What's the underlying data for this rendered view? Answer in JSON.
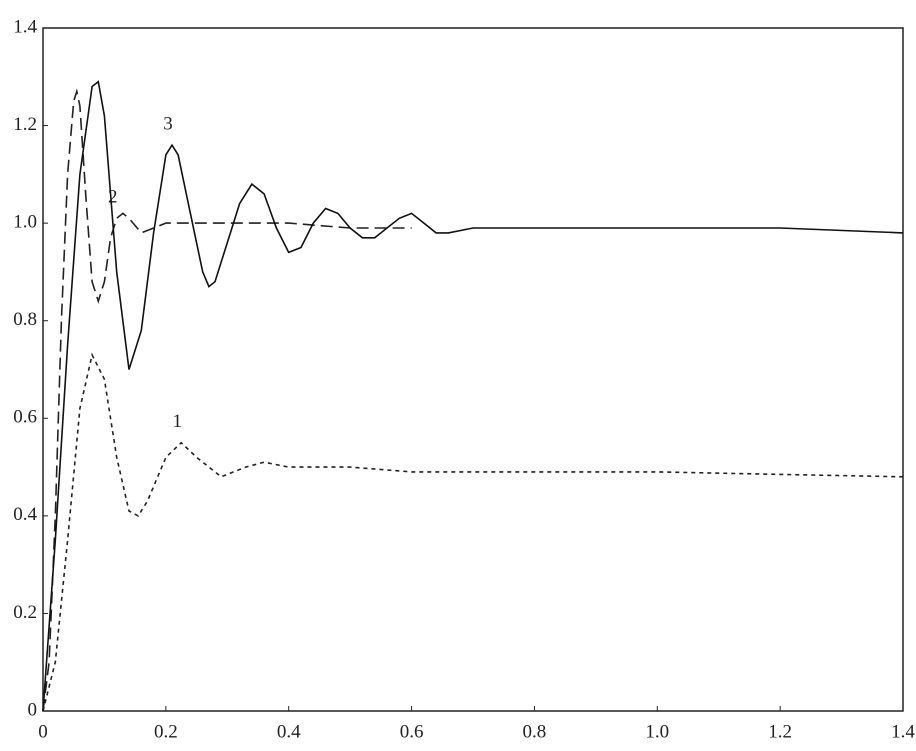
{
  "chart_data": {
    "type": "line",
    "xlim": [
      0,
      1.4
    ],
    "ylim": [
      0,
      1.4
    ],
    "xticks": [
      0,
      0.2,
      0.4,
      0.6,
      0.8,
      {
        "value": 1,
        "label": "1.0"
      },
      1.2,
      1.4
    ],
    "yticks": [
      0,
      0.2,
      0.4,
      0.6,
      0.8,
      {
        "value": 1,
        "label": "1.0"
      },
      1.2,
      1.4
    ],
    "grid": false,
    "series": [
      {
        "name": "1",
        "color": "#222222",
        "style": "dotted",
        "x": [
          0,
          0.02,
          0.04,
          0.06,
          0.08,
          0.1,
          0.12,
          0.14,
          0.155,
          0.17,
          0.2,
          0.225,
          0.25,
          0.29,
          0.33,
          0.36,
          0.4,
          0.5,
          0.6,
          0.8,
          1.0,
          1.2,
          1.4
        ],
        "values": [
          0,
          0.1,
          0.35,
          0.62,
          0.73,
          0.68,
          0.52,
          0.41,
          0.4,
          0.43,
          0.52,
          0.55,
          0.52,
          0.48,
          0.5,
          0.51,
          0.5,
          0.5,
          0.49,
          0.49,
          0.49,
          0.485,
          0.48
        ]
      },
      {
        "name": "2",
        "color": "#222222",
        "style": "dashed",
        "x": [
          0,
          0.01,
          0.02,
          0.03,
          0.04,
          0.05,
          0.055,
          0.06,
          0.07,
          0.08,
          0.09,
          0.1,
          0.11,
          0.12,
          0.13,
          0.14,
          0.16,
          0.18,
          0.2,
          0.3,
          0.4,
          0.5,
          0.6
        ],
        "values": [
          0,
          0.1,
          0.4,
          0.8,
          1.1,
          1.25,
          1.27,
          1.24,
          1.05,
          0.88,
          0.84,
          0.88,
          0.97,
          1.01,
          1.02,
          1.01,
          0.98,
          0.99,
          1.0,
          1.0,
          1.0,
          0.99,
          0.99
        ]
      },
      {
        "name": "3",
        "color": "#111111",
        "style": "solid",
        "x": [
          0,
          0.02,
          0.04,
          0.06,
          0.08,
          0.09,
          0.1,
          0.12,
          0.14,
          0.16,
          0.18,
          0.2,
          0.21,
          0.22,
          0.24,
          0.26,
          0.27,
          0.28,
          0.3,
          0.32,
          0.34,
          0.36,
          0.38,
          0.4,
          0.42,
          0.44,
          0.46,
          0.48,
          0.5,
          0.52,
          0.54,
          0.56,
          0.58,
          0.6,
          0.62,
          0.64,
          0.66,
          0.7,
          0.8,
          1.0,
          1.2,
          1.4
        ],
        "values": [
          0,
          0.35,
          0.75,
          1.1,
          1.28,
          1.29,
          1.22,
          0.9,
          0.7,
          0.78,
          0.98,
          1.14,
          1.16,
          1.14,
          1.02,
          0.9,
          0.87,
          0.88,
          0.96,
          1.04,
          1.08,
          1.06,
          0.99,
          0.94,
          0.95,
          1.0,
          1.03,
          1.02,
          0.99,
          0.97,
          0.97,
          0.99,
          1.01,
          1.02,
          1.0,
          0.98,
          0.98,
          0.99,
          0.99,
          0.99,
          0.99,
          0.98
        ]
      }
    ]
  }
}
